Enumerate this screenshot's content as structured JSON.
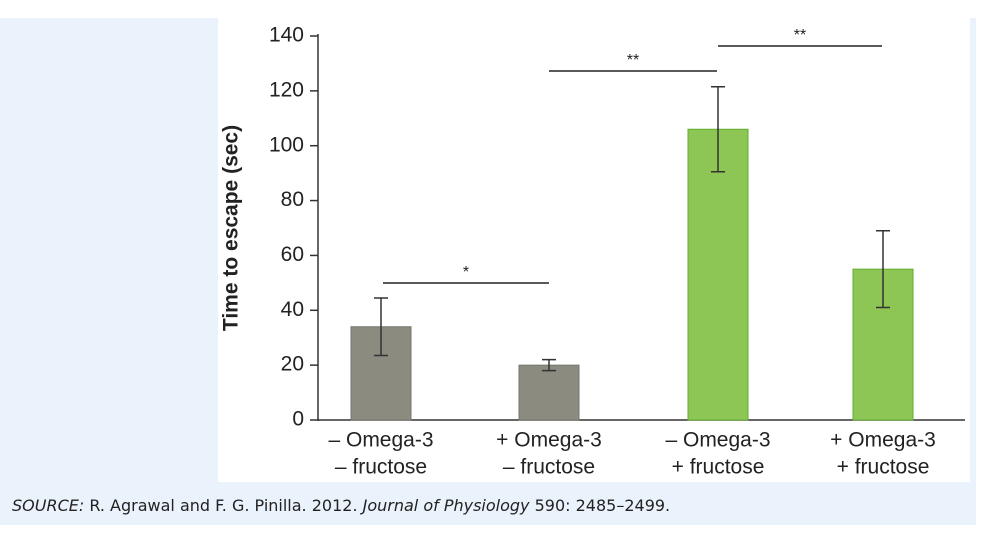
{
  "chart_data": {
    "type": "bar",
    "y_label": "Time to escape (sec)",
    "categories": [
      [
        "– Omega-3",
        "– fructose"
      ],
      [
        "+ Omega-3",
        "– fructose"
      ],
      [
        "– Omega-3",
        "+ fructose"
      ],
      [
        "+ Omega-3",
        "+ fructose"
      ]
    ],
    "values": [
      34,
      20,
      106,
      55
    ],
    "errors": [
      10.5,
      2,
      15.5,
      14
    ],
    "colors": [
      "#8c8b80",
      "#8c8b80",
      "#8dc654",
      "#8dc654"
    ],
    "ylim": [
      0,
      140
    ],
    "yticks": [
      0,
      20,
      40,
      60,
      80,
      100,
      120,
      140
    ],
    "annotations": [
      "*",
      "**",
      "**"
    ]
  },
  "source": {
    "label": "SOURCE:",
    "authors": " R. Agrawal and F. G. Pinilla. 2012. ",
    "journal": "Journal of Physiology",
    "details": " 590: 2485–2499."
  }
}
